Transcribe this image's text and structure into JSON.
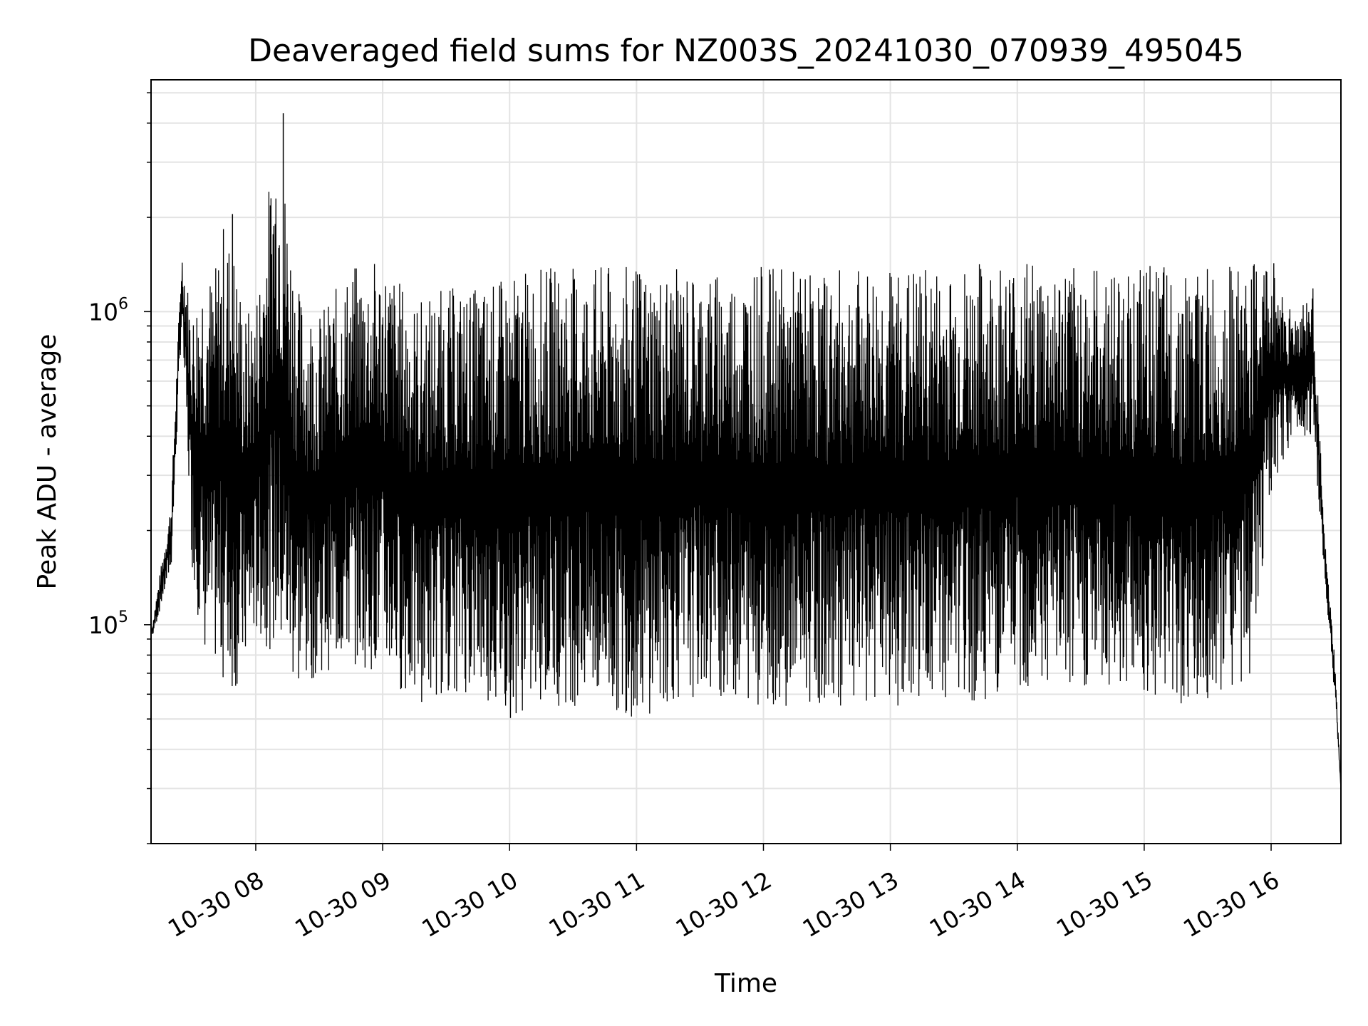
{
  "chart_data": {
    "type": "line",
    "title": "Deaveraged field sums for NZ003S_20241030_070939_495045",
    "xlabel": "Time",
    "ylabel": "Peak ADU - average",
    "yscale": "log",
    "ylim": [
      20000,
      5500000
    ],
    "xlim": [
      "10-30 07:10:30",
      "10-30 16:33:00"
    ],
    "grid": true,
    "x_ticks": [
      "10-30 08",
      "10-30 09",
      "10-30 10",
      "10-30 11",
      "10-30 12",
      "10-30 13",
      "10-30 14",
      "10-30 15",
      "10-30 16"
    ],
    "y_ticks": [
      {
        "base": "10",
        "exp": "5",
        "value": 100000
      },
      {
        "base": "10",
        "exp": "6",
        "value": 1000000
      }
    ],
    "line_color": "#000000",
    "series": [
      {
        "x": [
          "10-30 07:11",
          "10-30 07:20",
          "10-30 07:25",
          "10-30 07:30",
          "10-30 07:35",
          "10-30 07:40",
          "10-30 07:45",
          "10-30 07:50",
          "10-30 07:55",
          "10-30 08:00",
          "10-30 08:10",
          "10-30 08:20",
          "10-30 08:30",
          "10-30 08:45",
          "10-30 09:00",
          "10-30 09:15",
          "10-30 09:30",
          "10-30 09:45",
          "10-30 10:00",
          "10-30 10:15",
          "10-30 10:30",
          "10-30 11:00",
          "10-30 11:30",
          "10-30 12:00",
          "10-30 12:30",
          "10-30 13:00",
          "10-30 13:30",
          "10-30 14:00",
          "10-30 14:30",
          "10-30 15:00",
          "10-30 15:30",
          "10-30 15:50",
          "10-30 16:00",
          "10-30 16:10",
          "10-30 16:20",
          "10-30 16:25",
          "10-30 16:30",
          "10-30 16:33"
        ],
        "high": [
          100000,
          250000,
          1600000,
          1000000,
          1500000,
          1300000,
          2000000,
          1600000,
          1000000,
          1100000,
          4300000,
          1200000,
          1000000,
          1400000,
          1500000,
          1100000,
          1200000,
          1200000,
          1300000,
          1400000,
          1400000,
          1400000,
          1350000,
          1400000,
          1350000,
          1400000,
          1400000,
          1500000,
          1400000,
          1400000,
          1400000,
          1400000,
          1550000,
          1000000,
          1200000,
          200000,
          80000,
          30000
        ],
        "low": [
          90000,
          150000,
          900000,
          150000,
          80000,
          75000,
          65000,
          60000,
          70000,
          90000,
          80000,
          60000,
          70000,
          75000,
          70000,
          55000,
          60000,
          60000,
          50000,
          55000,
          55000,
          50000,
          60000,
          55000,
          55000,
          55000,
          55000,
          60000,
          60000,
          60000,
          50000,
          70000,
          250000,
          400000,
          400000,
          150000,
          60000,
          30000
        ]
      }
    ]
  }
}
